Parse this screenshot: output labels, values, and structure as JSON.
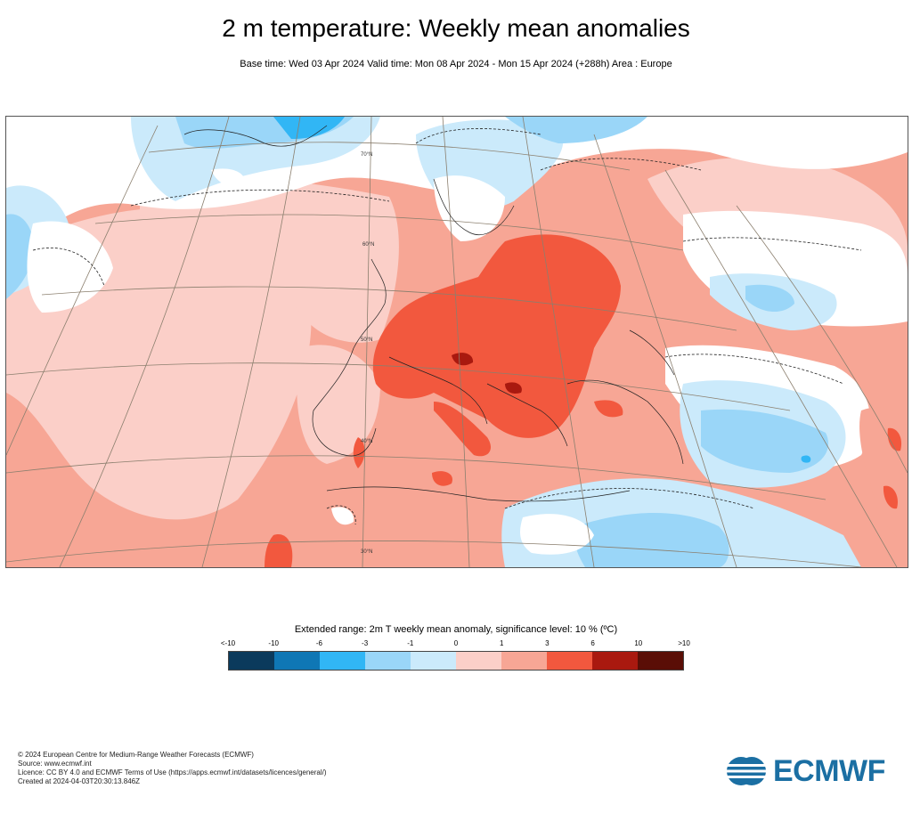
{
  "header": {
    "title": "2 m temperature: Weekly mean anomalies",
    "subtitle": "Base time: Wed 03 Apr 2024 Valid time: Mon 08 Apr 2024 - Mon 15 Apr 2024 (+288h) Area : Europe"
  },
  "map": {
    "lat_labels": [
      "70°N",
      "60°N",
      "50°N",
      "40°N",
      "30°N"
    ],
    "colors": {
      "strong_cold": "#0b3a5c",
      "cold": "#0f77b5",
      "cool": "#31b6f5",
      "light_cool": "#9ad6f8",
      "pale_cool": "#cbeafb",
      "pale_warm": "#fbcfc8",
      "light_warm": "#f7a695",
      "warm": "#f2583e",
      "hot": "#a9190f",
      "very_hot": "#5a0e06",
      "white": "#ffffff"
    }
  },
  "legend": {
    "title": "Extended range: 2m T weekly mean anomaly, significance level: 10 % (ºC)",
    "ticks": [
      "<-10",
      "-10",
      "-6",
      "-3",
      "-1",
      "0",
      "1",
      "3",
      "6",
      "10",
      ">10"
    ],
    "colors": [
      "#0b3a5c",
      "#0f77b5",
      "#31b6f5",
      "#9ad6f8",
      "#cbeafb",
      "#fbcfc8",
      "#f7a695",
      "#f2583e",
      "#a9190f",
      "#5a0e06"
    ]
  },
  "footer": {
    "line1": "© 2024 European Centre for Medium-Range Weather Forecasts (ECMWF)",
    "line2": "Source: www.ecmwf.int",
    "line3": "Licence: CC BY 4.0 and ECMWF Terms of Use (https://apps.ecmwf.int/datasets/licences/general/)",
    "line4": "Created at 2024-04-03T20:30:13.846Z"
  },
  "logo": {
    "text": "ECMWF",
    "color": "#1b6fa3"
  }
}
